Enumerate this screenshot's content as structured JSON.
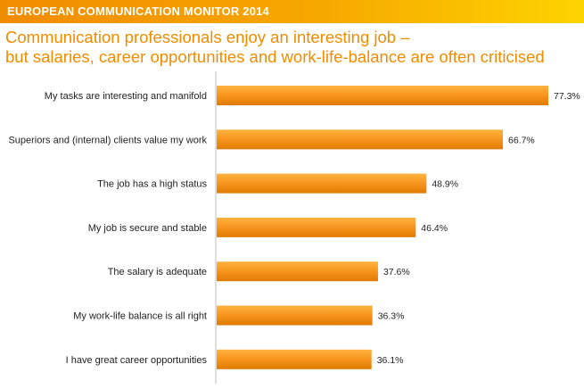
{
  "header": {
    "banner": "EUROPEAN COMMUNICATION MONITOR 2014",
    "title_line1": "Communication professionals enjoy an interesting job –",
    "title_line2": "but salaries, career opportunities and work-life-balance are often criticised"
  },
  "colors": {
    "accent": "#f08c00",
    "bar": "#f7941d"
  },
  "chart_data": {
    "type": "bar",
    "orientation": "horizontal",
    "categories": [
      "My tasks are interesting and manifold",
      "Superiors and (internal) clients value my work",
      "The job has a high status",
      "My job is secure and stable",
      "The salary is adequate",
      "My work-life balance is all right",
      "I have great career opportunities"
    ],
    "values": [
      77.3,
      66.7,
      48.9,
      46.4,
      37.6,
      36.3,
      36.1
    ],
    "value_labels": [
      "77.3%",
      "66.7%",
      "48.9%",
      "46.4%",
      "37.6%",
      "36.3%",
      "36.1%"
    ],
    "xlim": [
      0,
      100
    ],
    "grid": false,
    "legend": "none"
  }
}
